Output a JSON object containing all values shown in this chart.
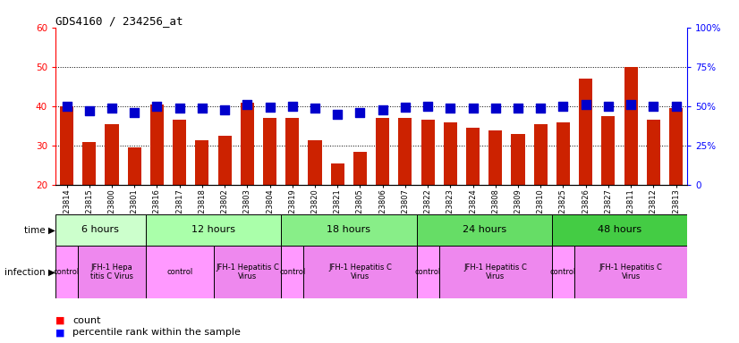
{
  "title": "GDS4160 / 234256_at",
  "samples": [
    "GSM523814",
    "GSM523815",
    "GSM523800",
    "GSM523801",
    "GSM523816",
    "GSM523817",
    "GSM523818",
    "GSM523802",
    "GSM523803",
    "GSM523804",
    "GSM523819",
    "GSM523820",
    "GSM523821",
    "GSM523805",
    "GSM523806",
    "GSM523807",
    "GSM523822",
    "GSM523823",
    "GSM523824",
    "GSM523808",
    "GSM523809",
    "GSM523810",
    "GSM523825",
    "GSM523826",
    "GSM523827",
    "GSM523811",
    "GSM523812",
    "GSM523813"
  ],
  "counts": [
    40.0,
    31.0,
    35.5,
    29.5,
    40.5,
    36.5,
    31.5,
    32.5,
    41.0,
    37.0,
    37.0,
    31.5,
    25.5,
    28.5,
    37.0,
    37.0,
    36.5,
    36.0,
    34.5,
    34.0,
    33.0,
    35.5,
    36.0,
    47.0,
    37.5,
    50.0,
    36.5,
    39.5
  ],
  "percentiles": [
    50,
    47,
    49,
    46,
    50,
    49,
    49,
    48,
    51,
    49.5,
    50,
    49,
    45,
    46,
    48,
    49.5,
    50,
    49,
    49,
    49,
    49,
    49,
    50,
    51,
    50,
    51,
    50,
    50
  ],
  "ylim_left": [
    20,
    60
  ],
  "ylim_right": [
    0,
    100
  ],
  "yticks_left": [
    20,
    30,
    40,
    50,
    60
  ],
  "yticks_right": [
    0,
    25,
    50,
    75,
    100
  ],
  "bar_color": "#cc2200",
  "dot_color": "#0000cc",
  "time_groups": [
    {
      "label": "6 hours",
      "start": 0,
      "end": 4,
      "color": "#ccffcc"
    },
    {
      "label": "12 hours",
      "start": 4,
      "end": 10,
      "color": "#aaffaa"
    },
    {
      "label": "18 hours",
      "start": 10,
      "end": 16,
      "color": "#88ee88"
    },
    {
      "label": "24 hours",
      "start": 16,
      "end": 22,
      "color": "#66dd66"
    },
    {
      "label": "48 hours",
      "start": 22,
      "end": 28,
      "color": "#44cc44"
    }
  ],
  "infection_groups": [
    {
      "label": "control",
      "start": 0,
      "end": 1,
      "color": "#ff99ff"
    },
    {
      "label": "JFH-1 Hepa\ntitis C Virus",
      "start": 1,
      "end": 4,
      "color": "#ee88ee"
    },
    {
      "label": "control",
      "start": 4,
      "end": 7,
      "color": "#ff99ff"
    },
    {
      "label": "JFH-1 Hepatitis C\nVirus",
      "start": 7,
      "end": 10,
      "color": "#ee88ee"
    },
    {
      "label": "control",
      "start": 10,
      "end": 11,
      "color": "#ff99ff"
    },
    {
      "label": "JFH-1 Hepatitis C\nVirus",
      "start": 11,
      "end": 16,
      "color": "#ee88ee"
    },
    {
      "label": "control",
      "start": 16,
      "end": 17,
      "color": "#ff99ff"
    },
    {
      "label": "JFH-1 Hepatitis C\nVirus",
      "start": 17,
      "end": 22,
      "color": "#ee88ee"
    },
    {
      "label": "control",
      "start": 22,
      "end": 23,
      "color": "#ff99ff"
    },
    {
      "label": "JFH-1 Hepatitis C\nVirus",
      "start": 23,
      "end": 28,
      "color": "#ee88ee"
    }
  ],
  "bg_color": "#ffffff"
}
